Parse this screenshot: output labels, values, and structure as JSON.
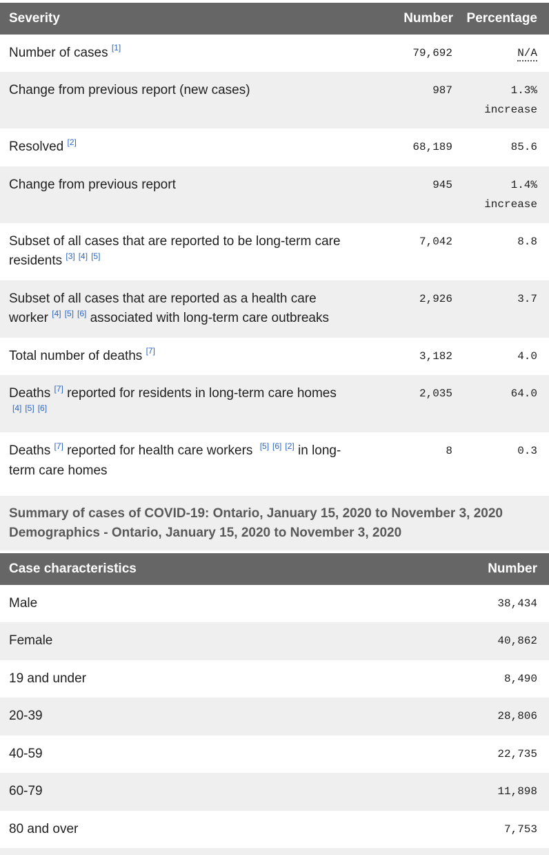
{
  "colors": {
    "header_bg": "#666666",
    "header_text": "#ffffff",
    "row_alt_bg": "#efefef",
    "footnote_link_blue": "#2b66c2",
    "label_text": "#1f1f1f",
    "caption_text": "#595959"
  },
  "severity_table": {
    "header": {
      "col1": "Severity",
      "col2": "Number",
      "col3": "Percentage"
    },
    "rows": [
      {
        "label": [
          [
            "t",
            "Number of cases "
          ],
          [
            "f",
            "[1]"
          ]
        ],
        "number": "79,692",
        "pct": "N/A",
        "pct_abbr": true
      },
      {
        "label": [
          [
            "t",
            "Change from previous report (new cases)"
          ]
        ],
        "number": "987",
        "pct": "1.3%",
        "pct_note": "increase"
      },
      {
        "label": [
          [
            "t",
            "Resolved "
          ],
          [
            "f",
            "[2]"
          ]
        ],
        "number": "68,189",
        "pct": "85.6"
      },
      {
        "label": [
          [
            "t",
            "Change from previous report"
          ]
        ],
        "number": "945",
        "pct": "1.4%",
        "pct_note": "increase"
      },
      {
        "label": [
          [
            "t",
            "Subset of all cases that are reported to be long-term care residents "
          ],
          [
            "f",
            "[3]"
          ],
          [
            "f",
            "[4]"
          ],
          [
            "f",
            "[5]"
          ]
        ],
        "number": "7,042",
        "pct": "8.8"
      },
      {
        "label": [
          [
            "t",
            "Subset of all cases that are reported as a health care worker "
          ],
          [
            "f",
            "[4]"
          ],
          [
            "f",
            "[5]"
          ],
          [
            "f",
            "[6]"
          ],
          [
            "t",
            " associated with long-term care outbreaks"
          ]
        ],
        "number": "2,926",
        "pct": "3.7"
      },
      {
        "label": [
          [
            "t",
            "Total number of deaths "
          ],
          [
            "f",
            "[7]"
          ]
        ],
        "number": "3,182",
        "pct": "4.0"
      },
      {
        "label": [
          [
            "t",
            "Deaths "
          ],
          [
            "f",
            "[7]"
          ],
          [
            "t",
            " reported for residents in long-term care homes "
          ],
          [
            "f",
            "[4]"
          ],
          [
            "f",
            "[5]"
          ],
          [
            "f",
            "[6]"
          ]
        ],
        "number": "2,035",
        "pct": "64.0"
      },
      {
        "label": [
          [
            "t",
            "Deaths "
          ],
          [
            "f",
            "[7]"
          ],
          [
            "t",
            " reported for health care workers "
          ],
          [
            "f",
            "[5]"
          ],
          [
            "f",
            "[6]"
          ],
          [
            "f",
            "[2]"
          ],
          [
            "t",
            " in long-term care homes"
          ]
        ],
        "number": "8",
        "pct": "0.3"
      }
    ]
  },
  "caption": {
    "line1": "Summary of cases of COVID-19: Ontario, January 15, 2020 to November 3, 2020",
    "line2": "Demographics - Ontario, January 15, 2020 to November 3, 2020"
  },
  "demographics_table": {
    "header": {
      "col1": "Case characteristics",
      "col2": "Number"
    },
    "rows": [
      {
        "label": "Male",
        "number": "38,434"
      },
      {
        "label": "Female",
        "number": "40,862"
      },
      {
        "label": "19 and under",
        "number": "8,490"
      },
      {
        "label": "20-39",
        "number": "28,806"
      },
      {
        "label": "40-59",
        "number": "22,735"
      },
      {
        "label": "60-79",
        "number": "11,898"
      },
      {
        "label": "80 and over",
        "number": "7,753"
      }
    ]
  }
}
